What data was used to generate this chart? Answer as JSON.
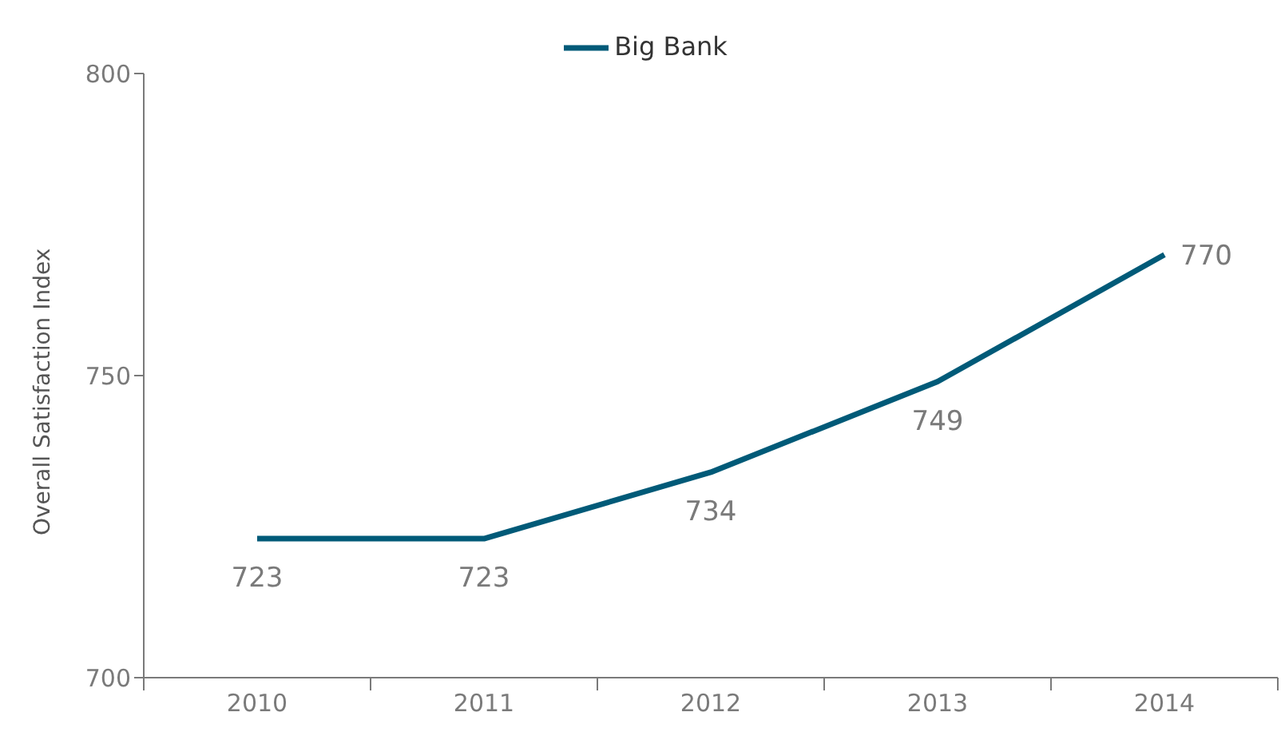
{
  "chart_data": {
    "type": "line",
    "categories": [
      "2010",
      "2011",
      "2012",
      "2013",
      "2014"
    ],
    "series": [
      {
        "name": "Big Bank",
        "color": "#005a78",
        "values": [
          723,
          723,
          734,
          749,
          770
        ]
      }
    ],
    "ylabel": "Overall Satisfaction Index",
    "ylim": [
      700,
      800
    ],
    "yticks": [
      700,
      750,
      800
    ],
    "legend": "top",
    "marker": "none",
    "line_style": "solid",
    "data_labels": true
  }
}
